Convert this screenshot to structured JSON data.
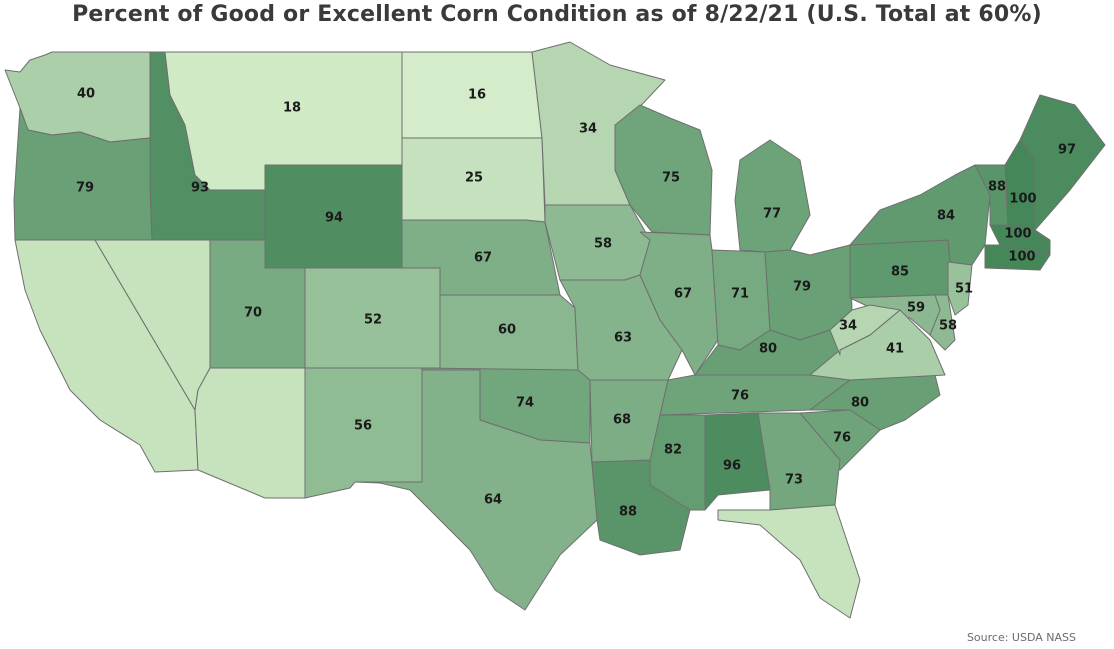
{
  "title": "Percent of Good or Excellent Corn Condition as of 8/22/21 (U.S. Total at 60%)",
  "source": "Source: USDA NASS",
  "color_scale": {
    "min_color": "#d4ecc9",
    "max_color": "#46875a"
  },
  "chart_data": {
    "type": "choropleth",
    "metric": "Percent of corn rated good or excellent",
    "us_total": 60,
    "states": [
      {
        "state": "WA",
        "value": 40
      },
      {
        "state": "OR",
        "value": 79
      },
      {
        "state": "ID",
        "value": 93
      },
      {
        "state": "MT",
        "value": 18
      },
      {
        "state": "WY",
        "value": 94
      },
      {
        "state": "ND",
        "value": 16
      },
      {
        "state": "SD",
        "value": 25
      },
      {
        "state": "NE",
        "value": 67
      },
      {
        "state": "KS",
        "value": 60
      },
      {
        "state": "MN",
        "value": 34
      },
      {
        "state": "IA",
        "value": 58
      },
      {
        "state": "MO",
        "value": 63
      },
      {
        "state": "WI",
        "value": 75
      },
      {
        "state": "IL",
        "value": 67
      },
      {
        "state": "MI",
        "value": 77
      },
      {
        "state": "IN",
        "value": 71
      },
      {
        "state": "OH",
        "value": 79
      },
      {
        "state": "KY",
        "value": 80
      },
      {
        "state": "TN",
        "value": 76
      },
      {
        "state": "NC",
        "value": 80
      },
      {
        "state": "SC",
        "value": 76
      },
      {
        "state": "GA",
        "value": 73
      },
      {
        "state": "AL",
        "value": 96
      },
      {
        "state": "MS",
        "value": 82
      },
      {
        "state": "LA",
        "value": 88
      },
      {
        "state": "AR",
        "value": 68
      },
      {
        "state": "OK",
        "value": 74
      },
      {
        "state": "TX",
        "value": 64
      },
      {
        "state": "NM",
        "value": 56
      },
      {
        "state": "CO",
        "value": 52
      },
      {
        "state": "UT",
        "value": 70
      },
      {
        "state": "PA",
        "value": 85
      },
      {
        "state": "NY",
        "value": 84
      },
      {
        "state": "VT",
        "value": 88
      },
      {
        "state": "NH",
        "value": 100
      },
      {
        "state": "ME",
        "value": 97
      },
      {
        "state": "MA",
        "value": 100
      },
      {
        "state": "CT",
        "value": 100
      },
      {
        "state": "NJ",
        "value": 51
      },
      {
        "state": "DE",
        "value": 58
      },
      {
        "state": "MD",
        "value": 59
      },
      {
        "state": "VA",
        "value": 41
      },
      {
        "state": "WV",
        "value": 34
      },
      {
        "state": "CA",
        "value": null
      },
      {
        "state": "NV",
        "value": null
      },
      {
        "state": "AZ",
        "value": null
      },
      {
        "state": "FL",
        "value": null
      }
    ]
  }
}
